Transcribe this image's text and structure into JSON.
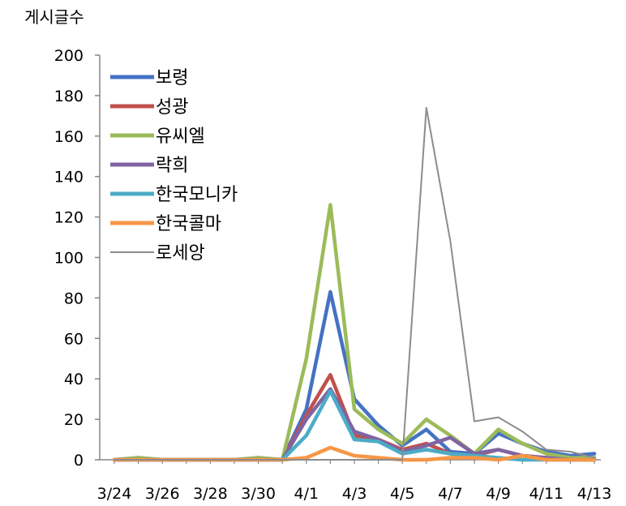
{
  "chart_data": {
    "type": "line",
    "ylabel": "게시글수",
    "ylim": [
      0,
      200
    ],
    "yticks": [
      0,
      20,
      40,
      60,
      80,
      100,
      120,
      140,
      160,
      180,
      200
    ],
    "x": [
      "3/24",
      "3/25",
      "3/26",
      "3/27",
      "3/28",
      "3/29",
      "3/30",
      "3/31",
      "4/1",
      "4/2",
      "4/3",
      "4/4",
      "4/5",
      "4/6",
      "4/7",
      "4/8",
      "4/9",
      "4/10",
      "4/11",
      "4/12",
      "4/13"
    ],
    "xtick_labels": [
      "3/24",
      "3/26",
      "3/28",
      "3/30",
      "4/1",
      "4/3",
      "4/5",
      "4/7",
      "4/9",
      "4/11",
      "4/13"
    ],
    "legend_position": "top-left",
    "grid": false,
    "series": [
      {
        "name": "보령",
        "color": "#4472C4",
        "values": [
          0,
          1,
          0,
          0,
          0,
          0,
          1,
          0,
          25,
          83,
          30,
          17,
          7,
          15,
          4,
          3,
          13,
          8,
          4,
          2,
          3
        ]
      },
      {
        "name": "성광",
        "color": "#C0504D",
        "values": [
          0,
          0,
          0,
          0,
          0,
          0,
          0,
          0,
          22,
          42,
          12,
          10,
          5,
          8,
          3,
          2,
          5,
          2,
          1,
          0,
          1
        ]
      },
      {
        "name": "유씨엘",
        "color": "#9BBB59",
        "values": [
          0,
          1,
          0,
          0,
          0,
          0,
          1,
          0,
          50,
          126,
          25,
          15,
          8,
          20,
          12,
          3,
          15,
          8,
          3,
          1,
          1
        ]
      },
      {
        "name": "락희",
        "color": "#8064A2",
        "values": [
          0,
          0,
          0,
          0,
          0,
          0,
          0,
          0,
          20,
          35,
          14,
          10,
          4,
          7,
          11,
          3,
          5,
          2,
          1,
          0,
          0
        ]
      },
      {
        "name": "한국모니카",
        "color": "#4BACC6",
        "values": [
          0,
          0,
          0,
          0,
          0,
          0,
          0,
          0,
          12,
          34,
          10,
          9,
          3,
          5,
          3,
          2,
          1,
          0,
          0,
          0,
          0
        ]
      },
      {
        "name": "한국콜마",
        "color": "#F79646",
        "values": [
          0,
          0,
          0,
          0,
          0,
          0,
          0,
          0,
          1,
          6,
          2,
          1,
          0,
          0,
          1,
          1,
          0,
          2,
          0,
          0,
          0
        ]
      },
      {
        "name": "로세앙",
        "color": "#8C8C8C",
        "values": [
          0,
          0,
          0,
          0,
          0,
          0,
          0,
          0,
          0,
          0,
          0,
          0,
          0,
          174,
          108,
          19,
          21,
          14,
          5,
          4,
          1
        ]
      }
    ]
  }
}
